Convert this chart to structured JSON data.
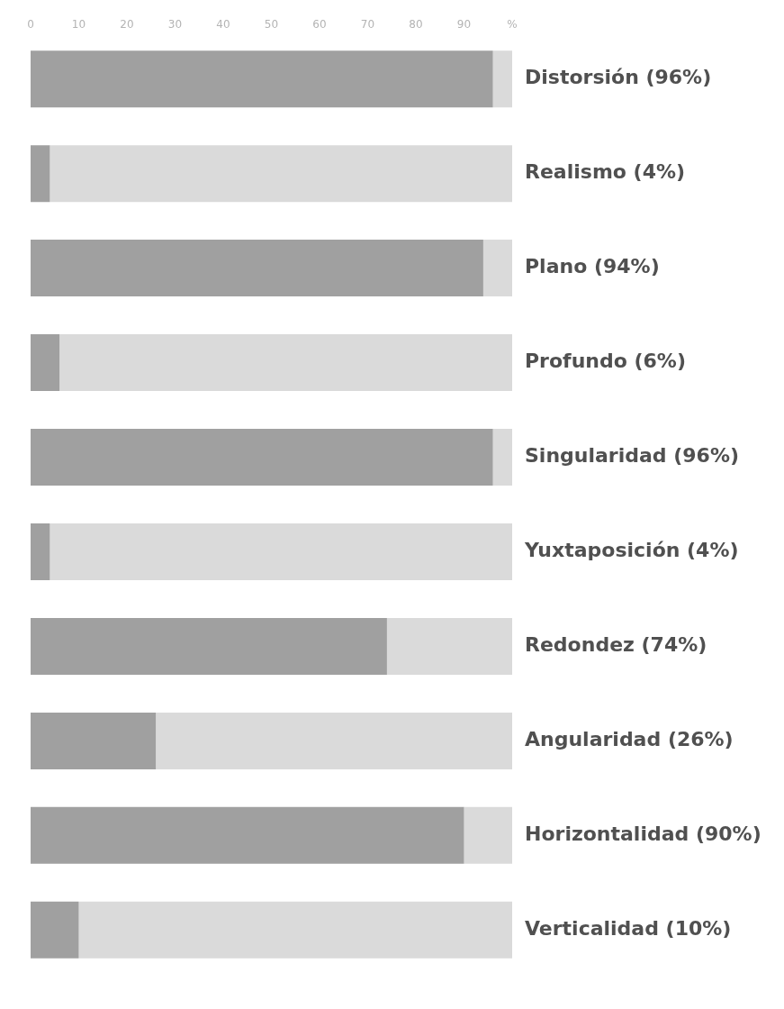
{
  "chart_data": {
    "type": "bar",
    "orientation": "horizontal",
    "stacked": true,
    "categories": [
      "Distorsión (96%)",
      "Realismo (4%)",
      "Plano (94%)",
      "Profundo (6%)",
      "Singularidad (96%)",
      "Yuxtaposición (4%)",
      "Redondez (74%)",
      "Angularidad (26%)",
      "Horizontalidad (90%)",
      "Verticalidad (10%)"
    ],
    "series": [
      {
        "color": "#a0a0a0",
        "values": [
          96,
          4,
          94,
          6,
          96,
          4,
          74,
          26,
          90,
          10
        ]
      },
      {
        "color": "#dadada",
        "values": [
          4,
          96,
          6,
          94,
          4,
          96,
          26,
          74,
          10,
          90
        ]
      }
    ],
    "xlim": [
      0,
      100
    ],
    "xticks": [
      0,
      10,
      20,
      30,
      40,
      50,
      60,
      70,
      80,
      90,
      {
        "value": 100,
        "label": "%"
      }
    ],
    "grid": false
  }
}
